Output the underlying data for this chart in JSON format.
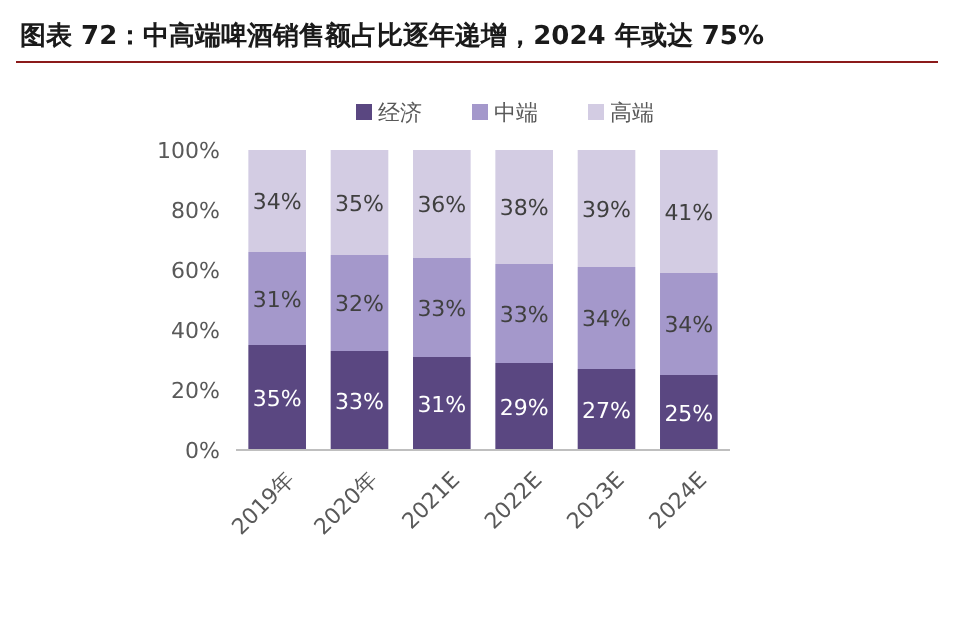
{
  "chart_data": {
    "type": "bar",
    "title": "图表 72：中高端啤酒销售额占比逐年递增，2024 年或达 75%",
    "stacked": true,
    "legend": "top",
    "categories": [
      "2019年",
      "2020年",
      "2021E",
      "2022E",
      "2023E",
      "2024E"
    ],
    "series": [
      {
        "name": "经济",
        "color": "#5a4781",
        "values": [
          35,
          33,
          31,
          29,
          27,
          25
        ],
        "value_labels": [
          "35%",
          "33%",
          "31%",
          "29%",
          "27%",
          "25%"
        ]
      },
      {
        "name": "中端",
        "color": "#a498cb",
        "values": [
          31,
          32,
          33,
          33,
          34,
          34
        ],
        "value_labels": [
          "31%",
          "32%",
          "33%",
          "33%",
          "34%",
          "34%"
        ]
      },
      {
        "name": "高端",
        "color": "#d3cce3",
        "values": [
          34,
          35,
          36,
          38,
          39,
          41
        ],
        "value_labels": [
          "34%",
          "35%",
          "36%",
          "38%",
          "39%",
          "41%"
        ]
      }
    ],
    "ylim": [
      0,
      100
    ],
    "yticks": [
      {
        "value": 0,
        "label": "0%"
      },
      {
        "value": 20,
        "label": "20%"
      },
      {
        "value": 40,
        "label": "40%"
      },
      {
        "value": 60,
        "label": "60%"
      },
      {
        "value": 80,
        "label": "80%"
      },
      {
        "value": 100,
        "label": "100%"
      }
    ]
  }
}
